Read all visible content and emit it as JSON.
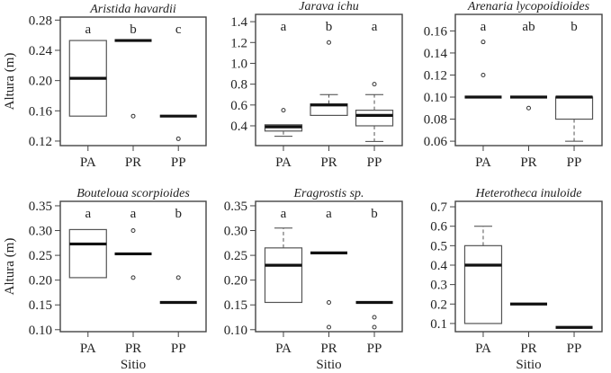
{
  "chart_data": [
    {
      "type": "boxplot",
      "title": "Aristida havardii",
      "ylabel": "Altura (m)",
      "xlabel": "",
      "categories": [
        "PA",
        "PR",
        "PP"
      ],
      "ylim": [
        0.114,
        0.284
      ],
      "yticks": [
        0.12,
        0.16,
        0.2,
        0.24,
        0.28
      ],
      "ytick_labels": [
        "0.12",
        "0.16",
        "0.20",
        "0.24",
        "0.28"
      ],
      "letters": [
        "a",
        "b",
        "c"
      ],
      "boxes": [
        {
          "low": 0.153,
          "q1": 0.153,
          "median": 0.203,
          "q3": 0.253,
          "high": 0.253,
          "outliers": []
        },
        {
          "low": 0.253,
          "q1": 0.253,
          "median": 0.253,
          "q3": 0.253,
          "high": 0.253,
          "outliers": [
            0.153
          ]
        },
        {
          "low": 0.153,
          "q1": 0.153,
          "median": 0.153,
          "q3": 0.153,
          "high": 0.153,
          "outliers": [
            0.123
          ]
        }
      ]
    },
    {
      "type": "boxplot",
      "title": "Jarava ichu",
      "ylabel": "",
      "xlabel": "",
      "categories": [
        "PA",
        "PR",
        "PP"
      ],
      "ylim": [
        0.21,
        1.47
      ],
      "yticks": [
        0.4,
        0.6,
        0.8,
        1.0,
        1.2,
        1.4
      ],
      "ytick_labels": [
        "0.4",
        "0.6",
        "0.8",
        "1.0",
        "1.2",
        "1.4"
      ],
      "letters": [
        "a",
        "b",
        "a"
      ],
      "boxes": [
        {
          "low": 0.3,
          "q1": 0.35,
          "median": 0.39,
          "q3": 0.41,
          "high": 0.41,
          "outliers": [
            0.55
          ]
        },
        {
          "low": 0.5,
          "q1": 0.5,
          "median": 0.6,
          "q3": 0.61,
          "high": 0.7,
          "outliers": [
            1.2
          ]
        },
        {
          "low": 0.25,
          "q1": 0.4,
          "median": 0.5,
          "q3": 0.55,
          "high": 0.7,
          "outliers": [
            0.8
          ]
        }
      ]
    },
    {
      "type": "boxplot",
      "title": "Arenaria lycopoidioides",
      "ylabel": "",
      "xlabel": "",
      "categories": [
        "PA",
        "PR",
        "PP"
      ],
      "ylim": [
        0.056,
        0.175
      ],
      "yticks": [
        0.06,
        0.08,
        0.1,
        0.12,
        0.14,
        0.16
      ],
      "ytick_labels": [
        "0.06",
        "0.08",
        "0.10",
        "0.12",
        "0.14",
        "0.16"
      ],
      "letters": [
        "a",
        "ab",
        "b"
      ],
      "boxes": [
        {
          "low": 0.1,
          "q1": 0.1,
          "median": 0.1,
          "q3": 0.1,
          "high": 0.1,
          "outliers": [
            0.15,
            0.12
          ]
        },
        {
          "low": 0.1,
          "q1": 0.1,
          "median": 0.1,
          "q3": 0.1,
          "high": 0.1,
          "outliers": [
            0.09
          ]
        },
        {
          "low": 0.06,
          "q1": 0.08,
          "median": 0.1,
          "q3": 0.1,
          "high": 0.1,
          "outliers": []
        }
      ]
    },
    {
      "type": "boxplot",
      "title": "Bouteloua scorpioides",
      "ylabel": "Altura (m)",
      "xlabel": "Sitio",
      "categories": [
        "PA",
        "PR",
        "PP"
      ],
      "ylim": [
        0.096,
        0.359
      ],
      "yticks": [
        0.1,
        0.15,
        0.2,
        0.25,
        0.3,
        0.35
      ],
      "ytick_labels": [
        "0.10",
        "0.15",
        "0.20",
        "0.25",
        "0.30",
        "0.35"
      ],
      "letters": [
        "a",
        "a",
        "b"
      ],
      "boxes": [
        {
          "low": 0.205,
          "q1": 0.205,
          "median": 0.273,
          "q3": 0.302,
          "high": 0.302,
          "outliers": []
        },
        {
          "low": 0.253,
          "q1": 0.253,
          "median": 0.253,
          "q3": 0.253,
          "high": 0.253,
          "outliers": [
            0.3,
            0.205
          ]
        },
        {
          "low": 0.155,
          "q1": 0.155,
          "median": 0.155,
          "q3": 0.155,
          "high": 0.155,
          "outliers": [
            0.205
          ]
        }
      ]
    },
    {
      "type": "boxplot",
      "title": "Eragrostis sp.",
      "ylabel": "",
      "xlabel": "Sitio",
      "categories": [
        "PA",
        "PR",
        "PP"
      ],
      "ylim": [
        0.096,
        0.359
      ],
      "yticks": [
        0.1,
        0.15,
        0.2,
        0.25,
        0.3,
        0.35
      ],
      "ytick_labels": [
        "0.10",
        "0.15",
        "0.20",
        "0.25",
        "0.30",
        "0.35"
      ],
      "letters": [
        "a",
        "a",
        "b"
      ],
      "boxes": [
        {
          "low": 0.155,
          "q1": 0.155,
          "median": 0.23,
          "q3": 0.265,
          "high": 0.305,
          "outliers": []
        },
        {
          "low": 0.255,
          "q1": 0.255,
          "median": 0.255,
          "q3": 0.255,
          "high": 0.255,
          "outliers": [
            0.155,
            0.105
          ]
        },
        {
          "low": 0.155,
          "q1": 0.155,
          "median": 0.155,
          "q3": 0.155,
          "high": 0.155,
          "outliers": [
            0.125,
            0.105
          ]
        }
      ]
    },
    {
      "type": "boxplot",
      "title": "Heterotheca inuloide",
      "ylabel": "",
      "xlabel": "Sitio",
      "categories": [
        "PA",
        "PR",
        "PP"
      ],
      "ylim": [
        0.058,
        0.728
      ],
      "yticks": [
        0.1,
        0.2,
        0.3,
        0.4,
        0.5,
        0.6,
        0.7
      ],
      "ytick_labels": [
        "0.1",
        "0.2",
        "0.3",
        "0.4",
        "0.5",
        "0.6",
        "0.7"
      ],
      "letters": [],
      "boxes": [
        {
          "low": 0.1,
          "q1": 0.1,
          "median": 0.4,
          "q3": 0.5,
          "high": 0.6,
          "outliers": []
        },
        {
          "low": 0.2,
          "q1": 0.2,
          "median": 0.2,
          "q3": 0.2,
          "high": 0.2,
          "outliers": []
        },
        {
          "low": 0.08,
          "q1": 0.08,
          "median": 0.08,
          "q3": 0.08,
          "high": 0.08,
          "outliers": []
        }
      ]
    }
  ]
}
